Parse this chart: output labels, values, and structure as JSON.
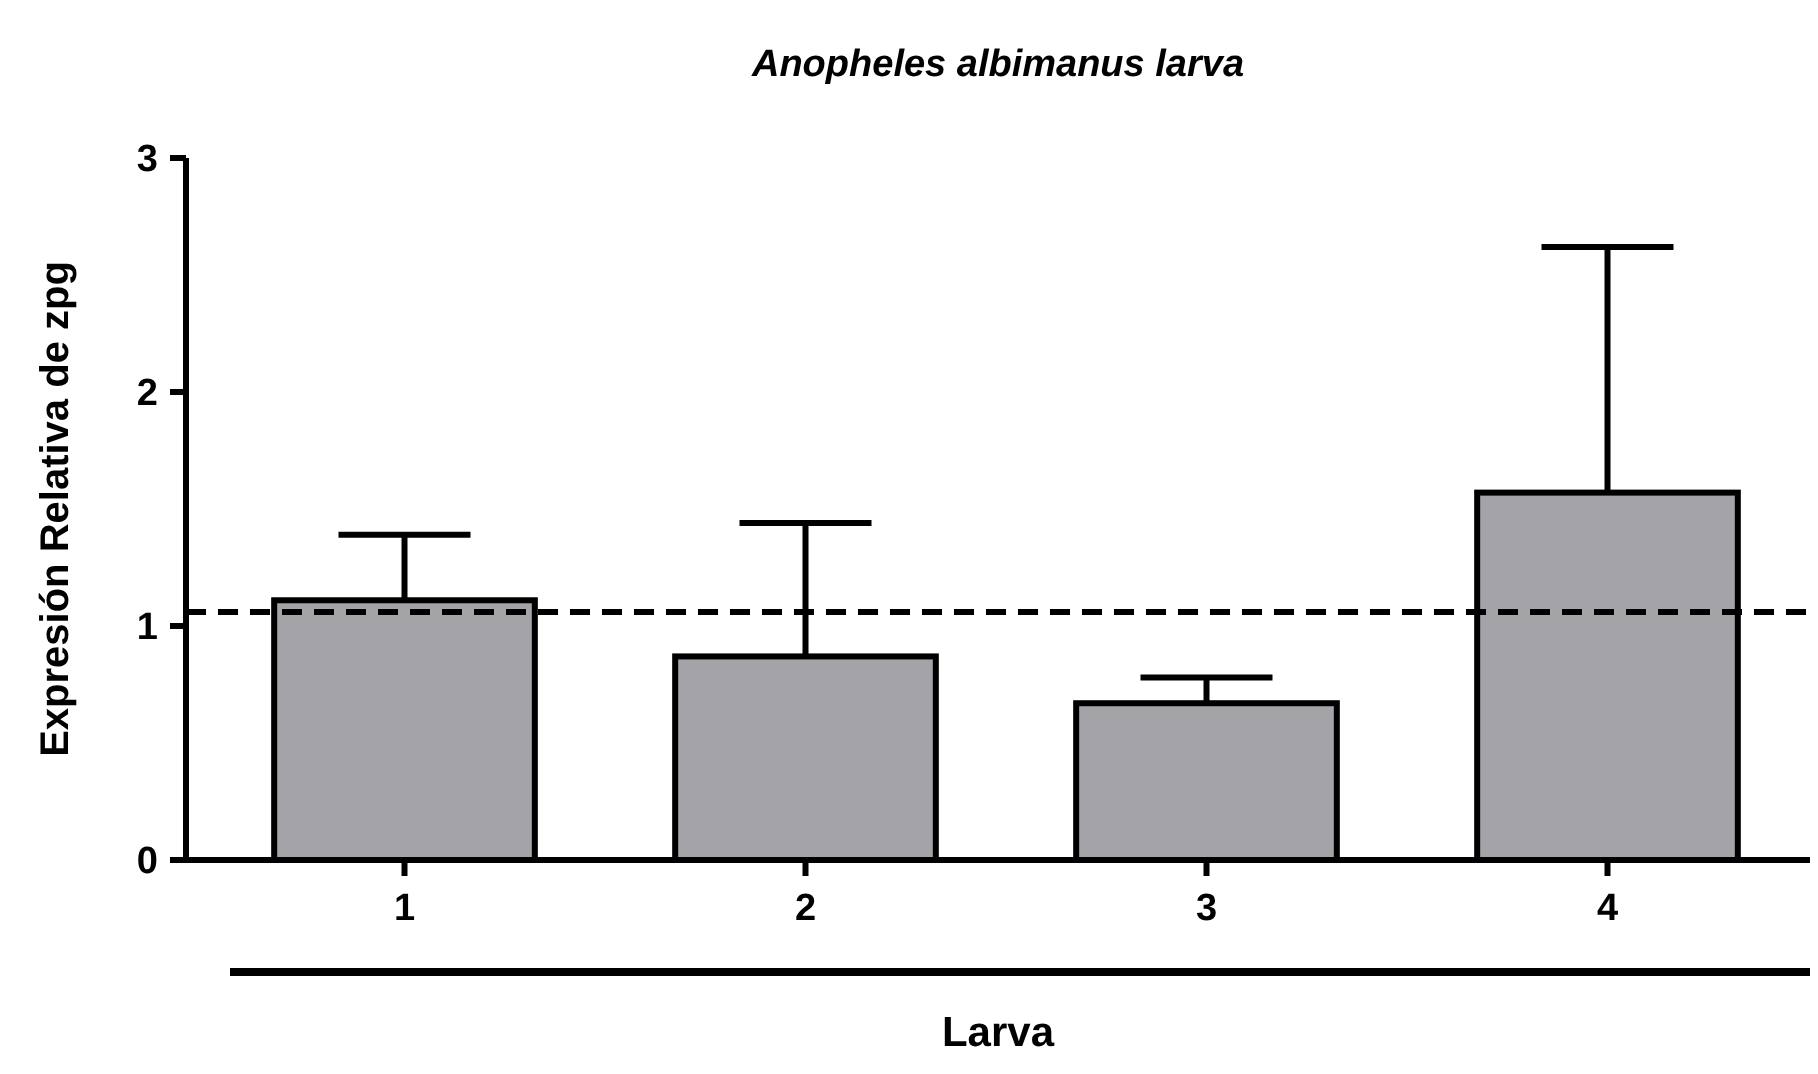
{
  "chart_data": {
    "type": "bar",
    "title": "Anopheles albimanus larva",
    "xlabel": "Larva",
    "ylabel": "Expresión Relativa de zpg",
    "categories": [
      "1",
      "2",
      "3",
      "4"
    ],
    "values": [
      1.11,
      0.87,
      0.67,
      1.57
    ],
    "errors": [
      [
        1.11,
        1.39
      ],
      [
        0.87,
        1.44
      ],
      [
        0.67,
        0.78
      ],
      [
        1.57,
        2.62
      ]
    ],
    "color": "#a3a3a8",
    "ylim": [
      0,
      3
    ],
    "yticks": [
      0,
      1,
      2,
      3
    ],
    "ref_lines": [
      {
        "axis": "y",
        "value": 1.06,
        "line_style": "dashed",
        "color": "#000000"
      }
    ],
    "grid": false
  }
}
